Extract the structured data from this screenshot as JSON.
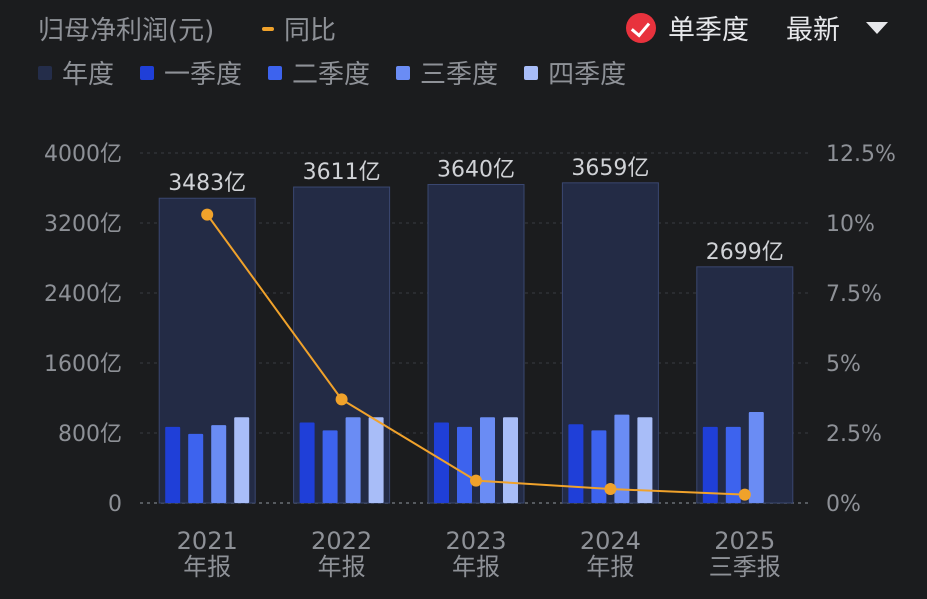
{
  "header": {
    "title": "归母净利润(元)",
    "yoy_label": "同比",
    "single_quarter_label": "单季度",
    "latest_label": "最新"
  },
  "legend": [
    {
      "label": "年度",
      "color": "#242d4a"
    },
    {
      "label": "一季度",
      "color": "#1f3fd8"
    },
    {
      "label": "二季度",
      "color": "#3d63ee"
    },
    {
      "label": "三季度",
      "color": "#6a8cf4"
    },
    {
      "label": "四季度",
      "color": "#a8bdf8"
    }
  ],
  "chart_data": {
    "type": "bar",
    "categories": [
      "2021\n年报",
      "2022\n年报",
      "2023\n年报",
      "2024\n年报",
      "2025\n三季报"
    ],
    "annual": [
      3483,
      3611,
      3640,
      3659,
      2699
    ],
    "annual_labels": [
      "3483亿",
      "3611亿",
      "3640亿",
      "3659亿",
      "2699亿"
    ],
    "series": [
      {
        "name": "一季度",
        "values": [
          870,
          920,
          920,
          900,
          870
        ]
      },
      {
        "name": "二季度",
        "values": [
          790,
          830,
          870,
          830,
          870
        ]
      },
      {
        "name": "三季度",
        "values": [
          890,
          980,
          980,
          1010,
          1040
        ]
      },
      {
        "name": "四季度",
        "values": [
          980,
          980,
          980,
          980,
          null
        ]
      }
    ],
    "yoy": {
      "name": "同比",
      "values": [
        10.3,
        3.7,
        0.8,
        0.5,
        0.3
      ]
    },
    "y_left": {
      "ylim": [
        0,
        4000
      ],
      "ticks": [
        "4000亿",
        "3200亿",
        "2400亿",
        "1600亿",
        "800亿",
        "0"
      ]
    },
    "y_right": {
      "ylim": [
        0,
        12.5
      ],
      "ticks": [
        "12.5%",
        "10%",
        "7.5%",
        "5%",
        "2.5%",
        "0%"
      ]
    },
    "colors": {
      "yoy_line": "#f0a22b",
      "grid": "#3a3c42"
    }
  }
}
